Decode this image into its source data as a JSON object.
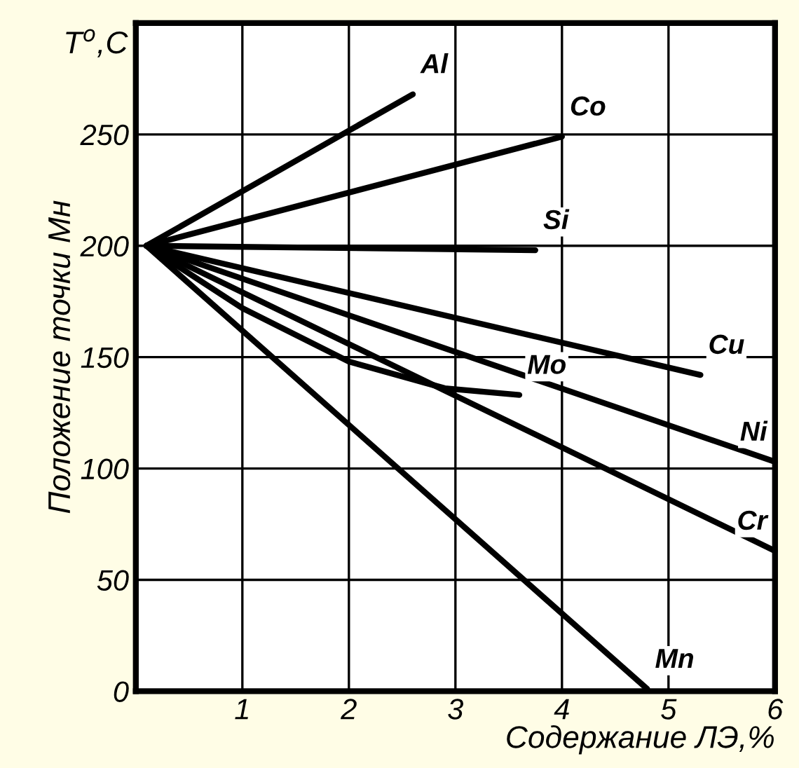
{
  "chart_data": {
    "type": "line",
    "xlabel": "Содержание ЛЭ,%",
    "ylabel": "Положение точки Mн",
    "annotations": [
      "T$^{o}$,C"
    ],
    "xlim": [
      0,
      6
    ],
    "ylim": [
      0,
      300
    ],
    "xticks": [
      1,
      2,
      3,
      4,
      5,
      6
    ],
    "yticks": [
      0,
      50,
      100,
      150,
      200,
      250
    ],
    "grid": true,
    "marker": "none",
    "line_style": "solid",
    "legend": false,
    "series": [
      {
        "name": "Al",
        "color": "#000000",
        "x": [
          0.1,
          2.6
        ],
        "values": [
          200,
          268
        ]
      },
      {
        "name": "Co",
        "color": "#000000",
        "x": [
          0.1,
          4.0
        ],
        "values": [
          200,
          249
        ]
      },
      {
        "name": "Si",
        "color": "#000000",
        "x": [
          0.1,
          3.75
        ],
        "values": [
          200,
          198
        ]
      },
      {
        "name": "Cu",
        "color": "#000000",
        "x": [
          0.1,
          5.3
        ],
        "values": [
          200,
          142
        ]
      },
      {
        "name": "Ni",
        "color": "#000000",
        "x": [
          0.1,
          6.0
        ],
        "values": [
          200,
          103
        ]
      },
      {
        "name": "Cr",
        "color": "#000000",
        "x": [
          0.1,
          6.0
        ],
        "values": [
          200,
          63
        ]
      },
      {
        "name": "Mo",
        "color": "#000000",
        "x": [
          0.1,
          1.0,
          2.0,
          2.9,
          3.6
        ],
        "values": [
          200,
          172,
          148,
          136,
          133
        ]
      },
      {
        "name": "Mn",
        "color": "#000000",
        "x": [
          0.1,
          4.8
        ],
        "values": [
          200,
          1
        ]
      }
    ]
  }
}
